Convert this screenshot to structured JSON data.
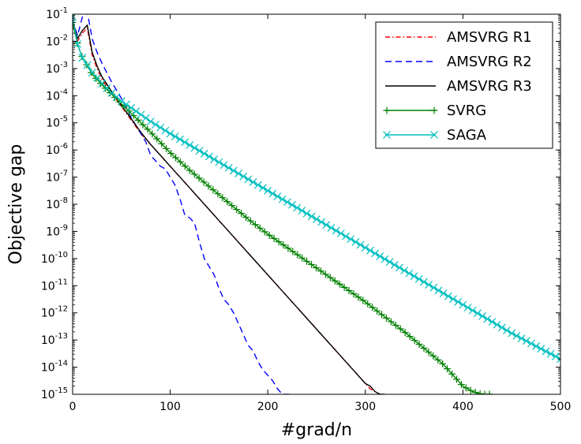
{
  "chart_data": {
    "type": "line",
    "title": "",
    "xlabel": "#grad/n",
    "ylabel": "Objective gap",
    "xlim": [
      0,
      500
    ],
    "ylim_log10": [
      -15,
      -1
    ],
    "y_scale": "log",
    "x_ticks": [
      0,
      100,
      200,
      300,
      400,
      500
    ],
    "y_tick_exponents": [
      -1,
      -2,
      -3,
      -4,
      -5,
      -6,
      -7,
      -8,
      -9,
      -10,
      -11,
      -12,
      -13,
      -14,
      -15
    ],
    "y_tick_base": "10",
    "legend_position": "top-right",
    "series": [
      {
        "name": "AMSVRG R1",
        "color": "#ff0000",
        "style": "dashdot",
        "marker": "none",
        "x": [
          0,
          5,
          10,
          15,
          20,
          25,
          30,
          40,
          50,
          60,
          70,
          80,
          90,
          100,
          110,
          120,
          130,
          140,
          150,
          160,
          170,
          180,
          190,
          200,
          210,
          220,
          230,
          240,
          250,
          260,
          270,
          280,
          290,
          300,
          305,
          310,
          315,
          318
        ],
        "log_y": [
          -1.2,
          -2.0,
          -1.7,
          -1.5,
          -2.5,
          -3.0,
          -3.4,
          -3.9,
          -4.4,
          -4.9,
          -5.4,
          -5.8,
          -6.2,
          -6.6,
          -7.0,
          -7.4,
          -7.8,
          -8.2,
          -8.6,
          -9.0,
          -9.4,
          -9.8,
          -10.2,
          -10.6,
          -11.0,
          -11.4,
          -11.8,
          -12.2,
          -12.6,
          -13.0,
          -13.4,
          -13.8,
          -14.2,
          -14.6,
          -14.8,
          -14.9,
          -15.0,
          -15.0
        ]
      },
      {
        "name": "AMSVRG R2",
        "color": "#0000ff",
        "style": "dashed",
        "marker": "none",
        "x": [
          0,
          5,
          10,
          15,
          20,
          25,
          30,
          40,
          50,
          60,
          70,
          75,
          80,
          90,
          95,
          100,
          105,
          110,
          115,
          120,
          125,
          130,
          135,
          140,
          145,
          150,
          155,
          160,
          165,
          170,
          175,
          180,
          185,
          190,
          195,
          200,
          205,
          210,
          215,
          220,
          222
        ],
        "log_y": [
          -1.2,
          -1.8,
          -1.1,
          -0.9,
          -1.9,
          -2.4,
          -2.8,
          -3.5,
          -4.1,
          -4.8,
          -5.4,
          -5.7,
          -6.2,
          -6.6,
          -6.7,
          -7.0,
          -7.3,
          -7.8,
          -8.4,
          -8.5,
          -8.7,
          -9.4,
          -10.0,
          -10.3,
          -10.6,
          -11.1,
          -11.5,
          -11.7,
          -12.0,
          -12.4,
          -12.8,
          -13.2,
          -13.4,
          -13.8,
          -14.1,
          -14.3,
          -14.5,
          -14.8,
          -15.0,
          -15.0,
          -15.0
        ]
      },
      {
        "name": "AMSVRG R3",
        "color": "#000000",
        "style": "solid",
        "marker": "none",
        "x": [
          0,
          5,
          10,
          15,
          20,
          25,
          30,
          40,
          50,
          60,
          70,
          80,
          90,
          100,
          110,
          120,
          130,
          140,
          150,
          160,
          170,
          180,
          190,
          200,
          210,
          220,
          230,
          240,
          250,
          260,
          270,
          280,
          290,
          300,
          305,
          310,
          315,
          320
        ],
        "log_y": [
          -1.2,
          -1.9,
          -1.6,
          -1.4,
          -2.4,
          -2.9,
          -3.3,
          -3.85,
          -4.35,
          -4.85,
          -5.35,
          -5.8,
          -6.2,
          -6.6,
          -7.0,
          -7.4,
          -7.8,
          -8.2,
          -8.6,
          -9.0,
          -9.4,
          -9.8,
          -10.2,
          -10.6,
          -11.0,
          -11.4,
          -11.8,
          -12.2,
          -12.6,
          -13.0,
          -13.4,
          -13.8,
          -14.2,
          -14.6,
          -14.7,
          -14.9,
          -15.0,
          -15.0
        ]
      },
      {
        "name": "SVRG",
        "color": "#008000",
        "style": "solid",
        "marker": "plus",
        "x": [
          0,
          5,
          10,
          20,
          30,
          40,
          50,
          60,
          80,
          100,
          120,
          140,
          160,
          180,
          200,
          220,
          240,
          260,
          280,
          300,
          320,
          340,
          360,
          380,
          390,
          400,
          410,
          420,
          430
        ],
        "log_y": [
          -1.3,
          -2.1,
          -2.6,
          -3.2,
          -3.6,
          -3.95,
          -4.3,
          -4.65,
          -5.35,
          -6.1,
          -6.75,
          -7.35,
          -7.95,
          -8.55,
          -9.1,
          -9.6,
          -10.1,
          -10.6,
          -11.1,
          -11.6,
          -12.15,
          -12.7,
          -13.3,
          -13.9,
          -14.3,
          -14.7,
          -14.9,
          -15.0,
          -15.0
        ]
      },
      {
        "name": "SAGA",
        "color": "#00bfbf",
        "style": "solid",
        "marker": "x",
        "x": [
          0,
          5,
          10,
          20,
          30,
          40,
          50,
          60,
          80,
          100,
          150,
          200,
          250,
          300,
          350,
          400,
          450,
          500
        ],
        "log_y": [
          -1.1,
          -2.1,
          -2.6,
          -3.15,
          -3.55,
          -3.9,
          -4.2,
          -4.45,
          -4.95,
          -5.4,
          -6.45,
          -7.5,
          -8.55,
          -9.6,
          -10.65,
          -11.7,
          -12.75,
          -13.7
        ]
      }
    ]
  }
}
